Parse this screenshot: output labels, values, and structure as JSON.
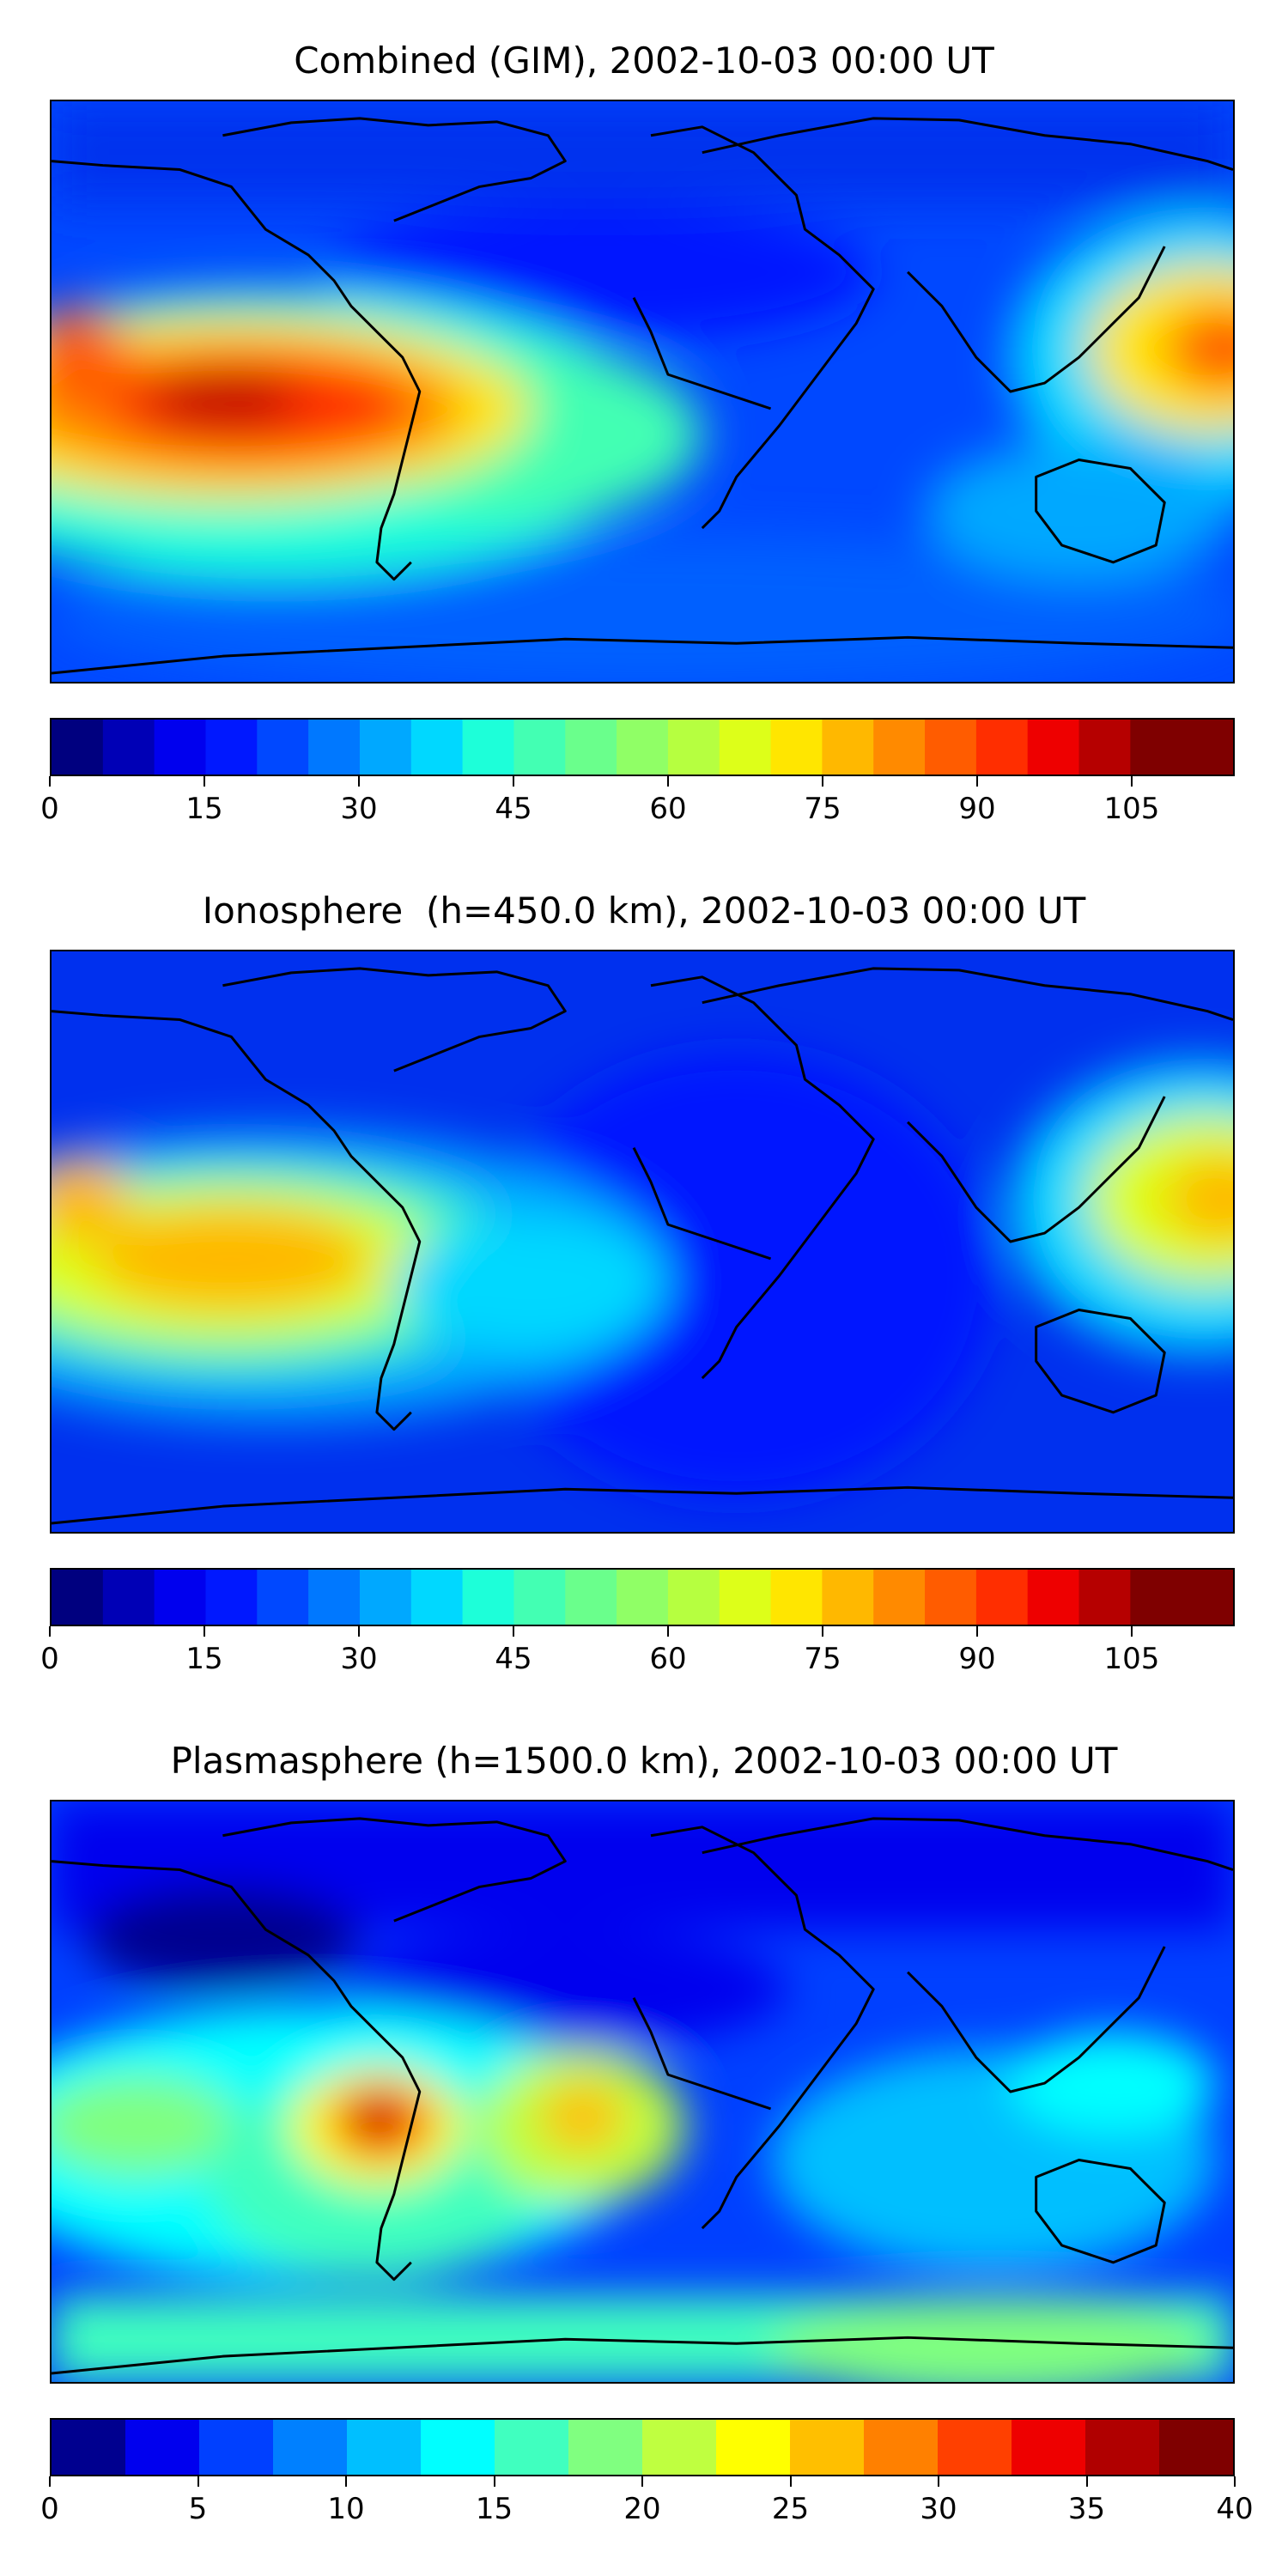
{
  "panels": [
    {
      "title": "Combined (GIM), 2002-10-03 00:00 UT",
      "colorbar": {
        "levels": [
          0,
          5,
          10,
          15,
          20,
          25,
          30,
          35,
          40,
          45,
          50,
          55,
          60,
          65,
          70,
          75,
          80,
          85,
          90,
          95,
          100,
          105,
          110,
          115
        ],
        "ticks": [
          "0",
          "15",
          "30",
          "45",
          "60",
          "75",
          "90",
          "105"
        ],
        "tick_values": [
          0,
          15,
          30,
          45,
          60,
          75,
          90,
          105
        ],
        "min": 0,
        "max": 115
      }
    },
    {
      "title": "Ionosphere  (h=450.0 km), 2002-10-03 00:00 UT",
      "colorbar": {
        "levels": [
          0,
          5,
          10,
          15,
          20,
          25,
          30,
          35,
          40,
          45,
          50,
          55,
          60,
          65,
          70,
          75,
          80,
          85,
          90,
          95,
          100,
          105,
          110,
          115
        ],
        "ticks": [
          "0",
          "15",
          "30",
          "45",
          "60",
          "75",
          "90",
          "105"
        ],
        "tick_values": [
          0,
          15,
          30,
          45,
          60,
          75,
          90,
          105
        ],
        "min": 0,
        "max": 115
      }
    },
    {
      "title": "Plasmasphere (h=1500.0 km), 2002-10-03 00:00 UT",
      "colorbar": {
        "levels": [
          0,
          2.5,
          5,
          7.5,
          10,
          12.5,
          15,
          17.5,
          20,
          22.5,
          25,
          27.5,
          30,
          32.5,
          35,
          37.5,
          40
        ],
        "ticks": [
          "0",
          "5",
          "10",
          "15",
          "20",
          "25",
          "30",
          "35",
          "40"
        ],
        "tick_values": [
          0,
          5,
          10,
          15,
          20,
          25,
          30,
          35,
          40
        ],
        "min": 0,
        "max": 40
      }
    }
  ],
  "colors": {
    "jet_24": [
      "#00007f",
      "#0000b6",
      "#0000ee",
      "#0018ff",
      "#0048ff",
      "#0078ff",
      "#00a8ff",
      "#00d8ff",
      "#1dffd9",
      "#43ffb3",
      "#6aff8c",
      "#90ff66",
      "#b6ff40",
      "#ddff19",
      "#ffe600",
      "#ffb800",
      "#ff8a00",
      "#ff5c00",
      "#ff2e00",
      "#ee0000",
      "#b60000",
      "#7f0000",
      "#7f0000"
    ],
    "jet_16": [
      "#00008f",
      "#0000ee",
      "#0040ff",
      "#0080ff",
      "#00bfff",
      "#00ffff",
      "#40ffbf",
      "#80ff80",
      "#bfff40",
      "#ffff00",
      "#ffbf00",
      "#ff8000",
      "#ff4000",
      "#ee0000",
      "#b00000",
      "#7f0000"
    ],
    "coastline": "#000000"
  }
}
